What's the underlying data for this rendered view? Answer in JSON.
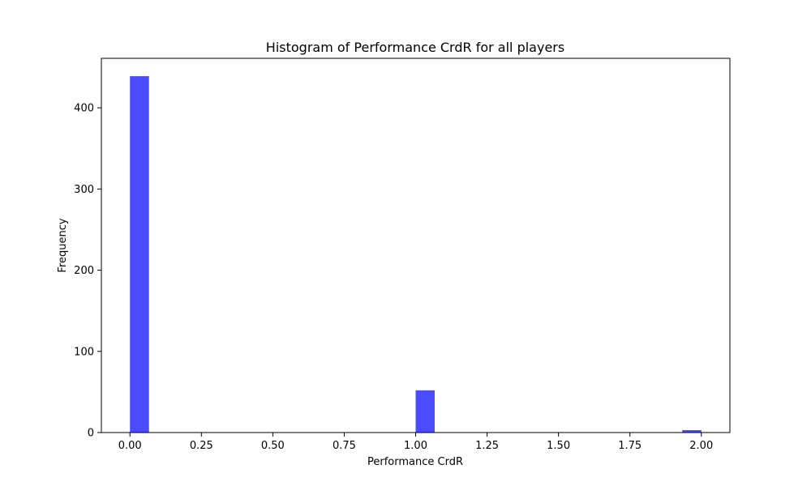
{
  "chart_data": {
    "type": "bar",
    "title": "Histogram of Performance CrdR for all players",
    "xlabel": "Performance CrdR",
    "ylabel": "Frequency",
    "bin_width": 0.0667,
    "bars": [
      {
        "x_start": 0.0,
        "value": 439
      },
      {
        "x_start": 1.0,
        "value": 52
      },
      {
        "x_start": 1.9333,
        "value": 3
      }
    ],
    "xlim": [
      -0.1,
      2.1
    ],
    "ylim": [
      0,
      461
    ],
    "xticks": [
      {
        "value": 0.0,
        "label": "0.00"
      },
      {
        "value": 0.25,
        "label": "0.25"
      },
      {
        "value": 0.5,
        "label": "0.50"
      },
      {
        "value": 0.75,
        "label": "0.75"
      },
      {
        "value": 1.0,
        "label": "1.00"
      },
      {
        "value": 1.25,
        "label": "1.25"
      },
      {
        "value": 1.5,
        "label": "1.50"
      },
      {
        "value": 1.75,
        "label": "1.75"
      },
      {
        "value": 2.0,
        "label": "2.00"
      }
    ],
    "yticks": [
      {
        "value": 0,
        "label": "0"
      },
      {
        "value": 100,
        "label": "100"
      },
      {
        "value": 200,
        "label": "200"
      },
      {
        "value": 300,
        "label": "300"
      },
      {
        "value": 400,
        "label": "400"
      }
    ],
    "bar_color": "#4b4bff",
    "grid": false
  }
}
